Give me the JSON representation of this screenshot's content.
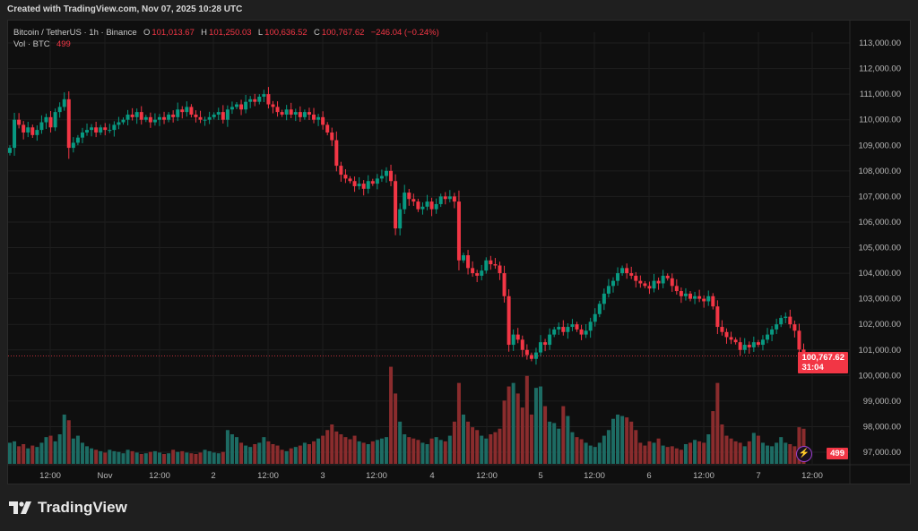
{
  "caption": "Created with TradingView.com, Nov 07, 2025 10:28 UTC",
  "legend": {
    "symbol": "Bitcoin / TetherUS · 1h · Binance",
    "open_label": "O",
    "open": "101,013.67",
    "high_label": "H",
    "high": "101,250.03",
    "low_label": "L",
    "low": "100,636.52",
    "close_label": "C",
    "close": "100,767.62",
    "change": "−246.04 (−0.24%)",
    "volume_label": "Vol · BTC",
    "volume": "499"
  },
  "price_tag": {
    "price": "100,767.62",
    "countdown": "31:04"
  },
  "volume_tag": "499",
  "brand": "TradingView",
  "icons": {
    "flash": "lightning-icon",
    "logo": "tradingview-logo-icon"
  },
  "colors": {
    "up": "#089981",
    "down": "#f23645",
    "vol_up": "#1d6b63",
    "vol_down": "#8a2c2d",
    "background": "#0f0f0f"
  },
  "chart_data": {
    "type": "candlestick",
    "interval": "1h",
    "ylim": [
      97000,
      113000
    ],
    "y_ticks": [
      "113,000.00",
      "112,000.00",
      "111,000.00",
      "110,000.00",
      "109,000.00",
      "108,000.00",
      "107,000.00",
      "106,000.00",
      "105,000.00",
      "104,000.00",
      "103,000.00",
      "102,000.00",
      "101,000.00",
      "100,000.00",
      "99,000.00",
      "98,000.00",
      "97,000.00"
    ],
    "x_ticks": [
      "12:00",
      "Nov",
      "12:00",
      "2",
      "12:00",
      "3",
      "12:00",
      "4",
      "12:00",
      "5",
      "12:00",
      "6",
      "12:00",
      "7",
      "12:00"
    ],
    "grid": true,
    "last_candle": {
      "open": 101013.67,
      "high": 101250.03,
      "low": 100636.52,
      "close": 100767.62
    },
    "closes": [
      108900,
      110000,
      109800,
      109500,
      109700,
      109400,
      109600,
      109900,
      110100,
      109700,
      110300,
      110500,
      110800,
      108900,
      109100,
      109300,
      109500,
      109600,
      109700,
      109500,
      109700,
      109600,
      109600,
      109800,
      109900,
      110000,
      110200,
      110100,
      110300,
      110000,
      110100,
      109900,
      110000,
      110100,
      110000,
      110200,
      110100,
      110400,
      110300,
      110500,
      110200,
      110100,
      110000,
      110000,
      110100,
      110200,
      110300,
      110000,
      110400,
      110500,
      110600,
      110400,
      110700,
      110800,
      110700,
      110900,
      111000,
      110600,
      110500,
      110300,
      110200,
      110400,
      110200,
      110300,
      110100,
      110300,
      110200,
      110000,
      110100,
      109800,
      109500,
      109200,
      108200,
      107850,
      107700,
      107600,
      107400,
      107500,
      107300,
      107600,
      107500,
      107700,
      107800,
      108000,
      107600,
      105750,
      106500,
      107150,
      106900,
      106800,
      106500,
      106600,
      106800,
      106500,
      106700,
      107000,
      106900,
      107000,
      106800,
      104500,
      104700,
      104200,
      104000,
      103900,
      104100,
      104500,
      104350,
      104300,
      104000,
      103100,
      101200,
      101600,
      101400,
      101000,
      100800,
      100650,
      100900,
      101300,
      101200,
      101600,
      101800,
      101900,
      101700,
      101900,
      102000,
      101800,
      101600,
      101750,
      102100,
      102400,
      102800,
      103200,
      103500,
      103700,
      104000,
      104200,
      104000,
      103900,
      103700,
      103600,
      103500,
      103400,
      103700,
      103600,
      103900,
      103800,
      103500,
      103300,
      103100,
      103200,
      103000,
      103100,
      103000,
      102900,
      103100,
      102700,
      101900,
      101700,
      101500,
      101400,
      101300,
      101000,
      101200,
      101100,
      101300,
      101200,
      101400,
      101600,
      101800,
      102000,
      102250,
      102300,
      102000,
      101750,
      101013.67,
      100767.62
    ],
    "volumes": [
      300,
      320,
      250,
      280,
      220,
      260,
      240,
      300,
      380,
      400,
      320,
      420,
      700,
      620,
      360,
      400,
      300,
      250,
      220,
      200,
      180,
      160,
      200,
      180,
      170,
      150,
      200,
      180,
      160,
      140,
      150,
      170,
      180,
      160,
      140,
      150,
      200,
      170,
      180,
      160,
      150,
      140,
      160,
      200,
      180,
      160,
      150,
      170,
      480,
      420,
      380,
      300,
      260,
      240,
      280,
      300,
      380,
      320,
      280,
      260,
      200,
      180,
      220,
      240,
      260,
      300,
      280,
      320,
      360,
      400,
      480,
      560,
      460,
      420,
      380,
      350,
      400,
      320,
      300,
      280,
      320,
      340,
      360,
      380,
      1380,
      1000,
      600,
      420,
      380,
      360,
      340,
      300,
      280,
      360,
      380,
      340,
      320,
      400,
      600,
      1150,
      700,
      600,
      520,
      480,
      400,
      360,
      420,
      450,
      500,
      900,
      1100,
      1150,
      1000,
      800,
      1250,
      700,
      1080,
      1100,
      820,
      600,
      580,
      500,
      820,
      680,
      450,
      380,
      350,
      300,
      260,
      240,
      300,
      400,
      480,
      640,
      700,
      680,
      660,
      600,
      480,
      300,
      260,
      320,
      300,
      360,
      260,
      240,
      250,
      220,
      200,
      280,
      300,
      340,
      320,
      300,
      420,
      750,
      1150,
      560,
      400,
      360,
      320,
      300,
      250,
      320,
      440,
      400,
      300,
      260,
      250,
      300,
      380,
      300,
      280,
      250,
      520,
      499
    ]
  }
}
